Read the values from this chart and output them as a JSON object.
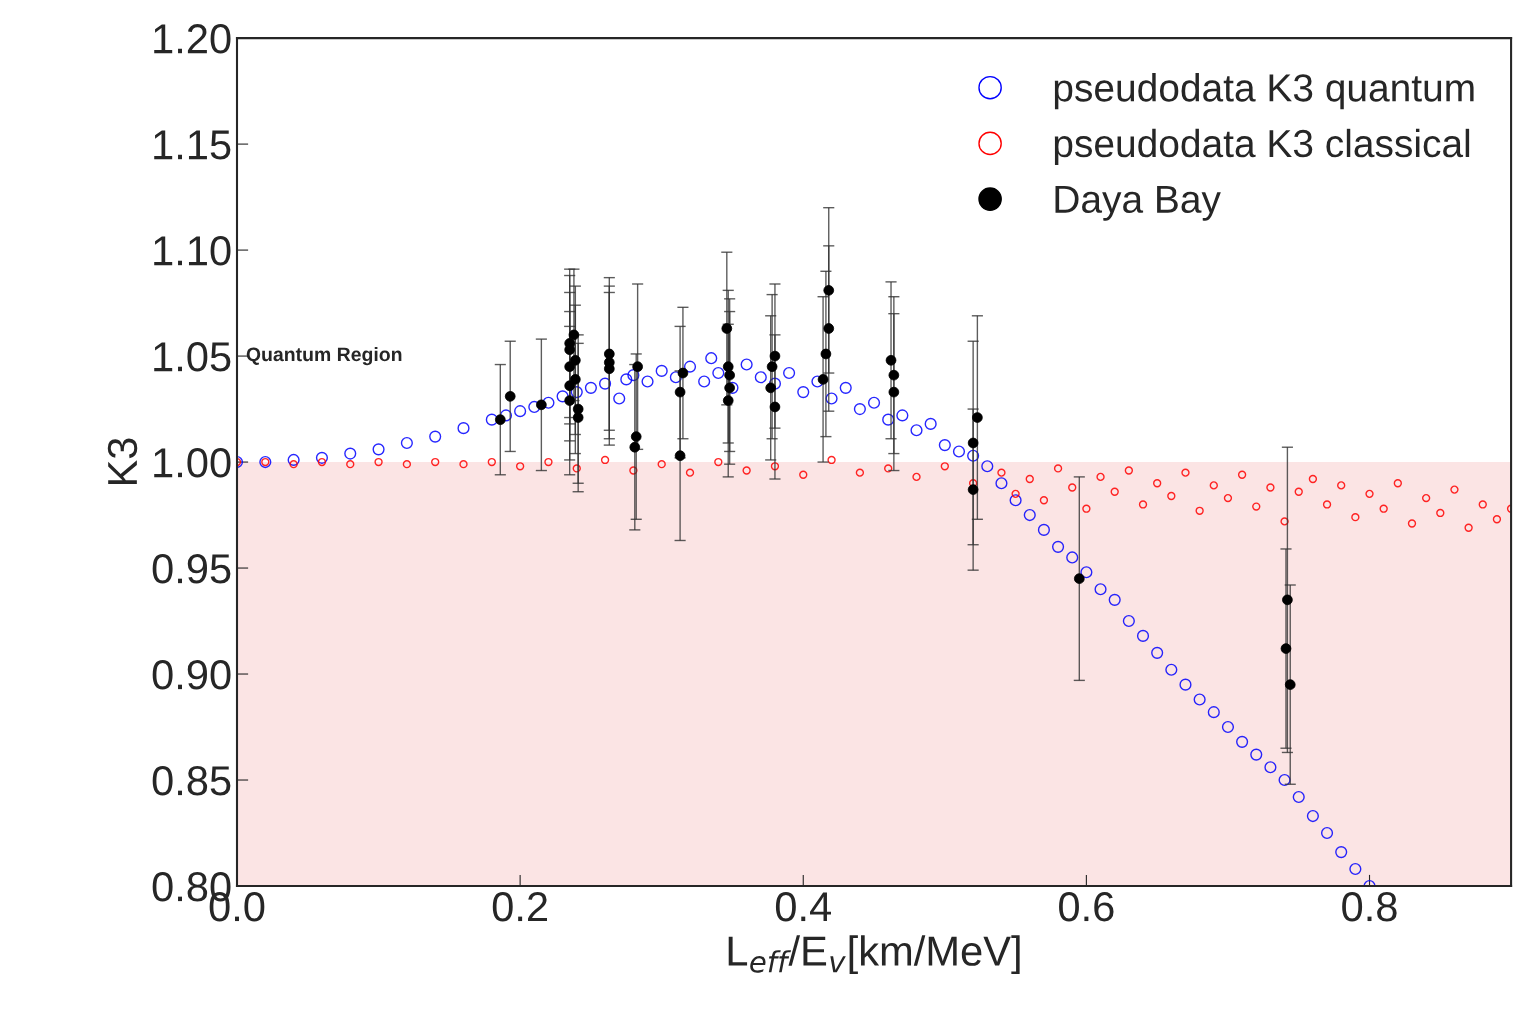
{
  "chart_data": {
    "type": "scatter",
    "xlabel": "L$_{eff}$/E$_{v}$[km/MeV]",
    "ylabel": "K3",
    "xlim": [
      0,
      0.9
    ],
    "ylim": [
      0.8,
      1.2
    ],
    "xticks": [
      {
        "value": 0,
        "label": "0.0"
      },
      {
        "value": 0.2,
        "label": "0.2"
      },
      {
        "value": 0.4,
        "label": "0.4"
      },
      {
        "value": 0.6,
        "label": "0.6"
      },
      {
        "value": 0.8,
        "label": "0.8"
      }
    ],
    "yticks": [
      {
        "value": 0.8,
        "label": "0.80"
      },
      {
        "value": 0.85,
        "label": "0.85"
      },
      {
        "value": 0.9,
        "label": "0.90"
      },
      {
        "value": 0.95,
        "label": "0.95"
      },
      {
        "value": 1.0,
        "label": "1.00"
      },
      {
        "value": 1.05,
        "label": "1.05"
      },
      {
        "value": 1.1,
        "label": "1.10"
      },
      {
        "value": 1.15,
        "label": "1.15"
      },
      {
        "value": 1.2,
        "label": "1.20"
      }
    ],
    "grid": false,
    "legend": "top right",
    "bands": [
      {
        "axis": "y",
        "from": 0.8,
        "to": 1.0,
        "color": "#fbe4e4"
      }
    ],
    "annotations": [
      "Quantum Region"
    ],
    "series": [
      {
        "name": "pseudodata K3 quantum",
        "color": "#0000ff",
        "marker": "circle",
        "x": [
          0.0,
          0.02,
          0.04,
          0.06,
          0.08,
          0.1,
          0.12,
          0.14,
          0.16,
          0.18,
          0.19,
          0.2,
          0.21,
          0.22,
          0.23,
          0.24,
          0.25,
          0.26,
          0.27,
          0.275,
          0.28,
          0.29,
          0.3,
          0.31,
          0.32,
          0.33,
          0.335,
          0.34,
          0.35,
          0.36,
          0.37,
          0.38,
          0.39,
          0.4,
          0.41,
          0.42,
          0.43,
          0.44,
          0.45,
          0.46,
          0.47,
          0.48,
          0.49,
          0.5,
          0.51,
          0.52,
          0.53,
          0.54,
          0.55,
          0.56,
          0.57,
          0.58,
          0.59,
          0.6,
          0.61,
          0.62,
          0.63,
          0.64,
          0.65,
          0.66,
          0.67,
          0.68,
          0.69,
          0.7,
          0.71,
          0.72,
          0.73,
          0.74,
          0.75,
          0.76,
          0.77,
          0.78,
          0.79,
          0.8
        ],
        "values": [
          1.0,
          1.0,
          1.001,
          1.002,
          1.004,
          1.006,
          1.009,
          1.012,
          1.016,
          1.02,
          1.022,
          1.024,
          1.026,
          1.028,
          1.031,
          1.033,
          1.035,
          1.037,
          1.03,
          1.039,
          1.041,
          1.038,
          1.043,
          1.04,
          1.045,
          1.038,
          1.049,
          1.042,
          1.035,
          1.046,
          1.04,
          1.037,
          1.042,
          1.033,
          1.038,
          1.03,
          1.035,
          1.025,
          1.028,
          1.02,
          1.022,
          1.015,
          1.018,
          1.008,
          1.005,
          1.003,
          0.998,
          0.99,
          0.982,
          0.975,
          0.968,
          0.96,
          0.955,
          0.948,
          0.94,
          0.935,
          0.925,
          0.918,
          0.91,
          0.902,
          0.895,
          0.888,
          0.882,
          0.875,
          0.868,
          0.862,
          0.856,
          0.85,
          0.842,
          0.833,
          0.825,
          0.816,
          0.808,
          0.8
        ]
      },
      {
        "name": "pseudodata K3 classical",
        "color": "#ff0000",
        "marker": "circle",
        "x": [
          0.0,
          0.02,
          0.04,
          0.06,
          0.08,
          0.1,
          0.12,
          0.14,
          0.16,
          0.18,
          0.2,
          0.22,
          0.24,
          0.26,
          0.28,
          0.3,
          0.32,
          0.34,
          0.36,
          0.38,
          0.4,
          0.42,
          0.44,
          0.46,
          0.48,
          0.5,
          0.52,
          0.54,
          0.55,
          0.56,
          0.57,
          0.58,
          0.59,
          0.6,
          0.61,
          0.62,
          0.63,
          0.64,
          0.65,
          0.66,
          0.67,
          0.68,
          0.69,
          0.7,
          0.71,
          0.72,
          0.73,
          0.74,
          0.75,
          0.76,
          0.77,
          0.78,
          0.79,
          0.8,
          0.81,
          0.82,
          0.83,
          0.84,
          0.85,
          0.86,
          0.87,
          0.88,
          0.89,
          0.9
        ],
        "values": [
          1.0,
          1.0,
          0.999,
          1.0,
          0.999,
          1.0,
          0.999,
          1.0,
          0.999,
          1.0,
          0.998,
          1.0,
          0.997,
          1.001,
          0.996,
          0.999,
          0.995,
          1.0,
          0.996,
          0.998,
          0.994,
          1.001,
          0.995,
          0.997,
          0.993,
          0.998,
          0.99,
          0.995,
          0.985,
          0.992,
          0.982,
          0.997,
          0.988,
          0.978,
          0.993,
          0.986,
          0.996,
          0.98,
          0.99,
          0.984,
          0.995,
          0.977,
          0.989,
          0.983,
          0.994,
          0.979,
          0.988,
          0.972,
          0.986,
          0.992,
          0.98,
          0.989,
          0.974,
          0.985,
          0.978,
          0.99,
          0.971,
          0.983,
          0.976,
          0.987,
          0.969,
          0.98,
          0.973,
          0.978
        ]
      },
      {
        "name": "Daya Bay",
        "color": "#000000",
        "marker": "circle",
        "x": [
          0.186,
          0.193,
          0.215,
          0.238,
          0.235,
          0.235,
          0.239,
          0.235,
          0.239,
          0.235,
          0.235,
          0.241,
          0.241,
          0.263,
          0.263,
          0.263,
          0.283,
          0.282,
          0.281,
          0.315,
          0.313,
          0.313,
          0.346,
          0.347,
          0.348,
          0.348,
          0.347,
          0.378,
          0.38,
          0.377,
          0.38,
          0.418,
          0.418,
          0.416,
          0.414,
          0.462,
          0.464,
          0.464,
          0.523,
          0.52,
          0.52,
          0.595,
          0.742,
          0.741,
          0.744
        ],
        "values": [
          1.02,
          1.031,
          1.027,
          1.06,
          1.056,
          1.053,
          1.048,
          1.045,
          1.039,
          1.036,
          1.029,
          1.025,
          1.021,
          1.051,
          1.047,
          1.044,
          1.045,
          1.012,
          1.007,
          1.042,
          1.033,
          1.003,
          1.063,
          1.045,
          1.041,
          1.035,
          1.029,
          1.045,
          1.05,
          1.035,
          1.026,
          1.081,
          1.063,
          1.051,
          1.039,
          1.048,
          1.041,
          1.033,
          1.021,
          1.009,
          0.987,
          0.945,
          0.935,
          0.912,
          0.895
        ],
        "errors": [
          0.026,
          0.026,
          0.031,
          0.031,
          0.035,
          0.035,
          0.035,
          0.035,
          0.035,
          0.035,
          0.035,
          0.035,
          0.035,
          0.036,
          0.036,
          0.036,
          0.039,
          0.039,
          0.039,
          0.031,
          0.031,
          0.04,
          0.036,
          0.036,
          0.036,
          0.036,
          0.036,
          0.034,
          0.034,
          0.034,
          0.034,
          0.039,
          0.039,
          0.039,
          0.039,
          0.037,
          0.037,
          0.037,
          0.048,
          0.048,
          0.038,
          0.048,
          0.072,
          0.047,
          0.047
        ]
      }
    ]
  }
}
